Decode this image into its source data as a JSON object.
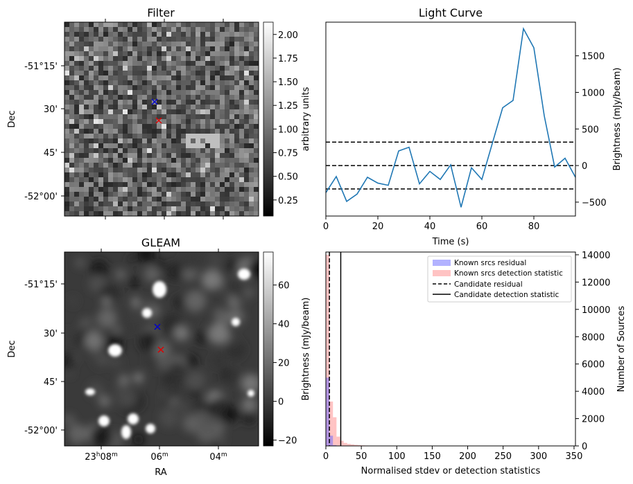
{
  "chart_data": [
    {
      "type": "heatmap",
      "title": "Filter",
      "ylabel": "Dec",
      "y_ticks": [
        "-51°15'",
        "30'",
        "45'",
        "-52°00'"
      ],
      "colorbar_label": "arbitrary units",
      "colorbar_ticks": [
        "0.25",
        "0.50",
        "0.75",
        "1.00",
        "1.25",
        "1.50",
        "1.75",
        "2.00"
      ],
      "colorbar_range": [
        0.08,
        2.13
      ],
      "markers": [
        {
          "color": "#0000cc",
          "symbol": "x",
          "label": "blue marker"
        },
        {
          "color": "#dd0000",
          "symbol": "x",
          "label": "red marker"
        }
      ]
    },
    {
      "type": "line",
      "title": "Light Curve",
      "xlabel": "Time (s)",
      "ylabel": "Brightness (mJy/beam)",
      "xlim": [
        0,
        96
      ],
      "ylim": [
        -690,
        1960
      ],
      "x_ticks": [
        0,
        20,
        40,
        60,
        80
      ],
      "y_ticks": [
        -500,
        0,
        500,
        1000,
        1500
      ],
      "series": [
        {
          "color": "#1f77b4",
          "x": [
            0,
            4,
            8,
            12,
            16,
            20,
            24,
            28,
            32,
            36,
            40,
            44,
            48,
            52,
            56,
            60,
            64,
            68,
            72,
            76,
            80,
            84,
            88,
            92,
            96
          ],
          "y": [
            -370,
            -150,
            -490,
            -390,
            -160,
            -240,
            -270,
            200,
            250,
            -250,
            -80,
            -190,
            10,
            -570,
            -30,
            -190,
            300,
            790,
            890,
            1870,
            1610,
            680,
            -20,
            100,
            -160
          ]
        }
      ],
      "hlines": [
        {
          "y": 320,
          "style": "dashed"
        },
        {
          "y": 0,
          "style": "dashed"
        },
        {
          "y": -320,
          "style": "dashed"
        }
      ]
    },
    {
      "type": "heatmap",
      "title": "GLEAM",
      "xlabel": "RA",
      "ylabel": "Dec",
      "x_ticks": [
        {
          "base": "23",
          "sup1": "h",
          "mid": "08",
          "sup2": "m"
        },
        {
          "base": "06",
          "sup1": "m",
          "mid": "",
          "sup2": ""
        },
        {
          "base": "04",
          "sup1": "m",
          "mid": "",
          "sup2": ""
        }
      ],
      "y_ticks": [
        "-51°15'",
        "30'",
        "45'",
        "-52°00'"
      ],
      "colorbar_label": "Brightness (mJy/beam)",
      "colorbar_ticks": [
        "−20",
        "0",
        "20",
        "40",
        "60"
      ],
      "colorbar_range": [
        -23,
        77
      ],
      "markers": [
        {
          "color": "#0000cc",
          "symbol": "x",
          "label": "blue marker"
        },
        {
          "color": "#dd0000",
          "symbol": "x",
          "label": "red marker"
        }
      ]
    },
    {
      "type": "bar",
      "xlabel": "Normalised stdev or detection statistics",
      "ylabel": "Number of Sources",
      "xlim": [
        0,
        352
      ],
      "ylim": [
        0,
        14200
      ],
      "x_ticks": [
        0,
        50,
        100,
        150,
        200,
        250,
        300,
        350
      ],
      "y_ticks": [
        0,
        2000,
        4000,
        6000,
        8000,
        10000,
        12000,
        14000
      ],
      "bin_width": 5,
      "series": [
        {
          "name": "Known srcs residual",
          "color": "#6666ff",
          "bins": [
            0,
            5,
            10
          ],
          "values": [
            5000,
            750,
            60
          ]
        },
        {
          "name": "Known srcs detection statistic",
          "color": "#ff8888",
          "bins": [
            0,
            5,
            10,
            15,
            20,
            25,
            30,
            35,
            40,
            45,
            50,
            55,
            60,
            70,
            80,
            100,
            120,
            150,
            200,
            230,
            260,
            330
          ],
          "values": [
            14000,
            3250,
            2100,
            680,
            380,
            220,
            150,
            110,
            80,
            60,
            40,
            30,
            25,
            18,
            12,
            8,
            6,
            5,
            4,
            3,
            3,
            3
          ]
        }
      ],
      "vlines": [
        {
          "name": "Candidate residual",
          "x": 5,
          "style": "dashed"
        },
        {
          "name": "Candidate detection statistic",
          "x": 21,
          "style": "solid"
        }
      ],
      "legend_position": "top-right"
    }
  ]
}
